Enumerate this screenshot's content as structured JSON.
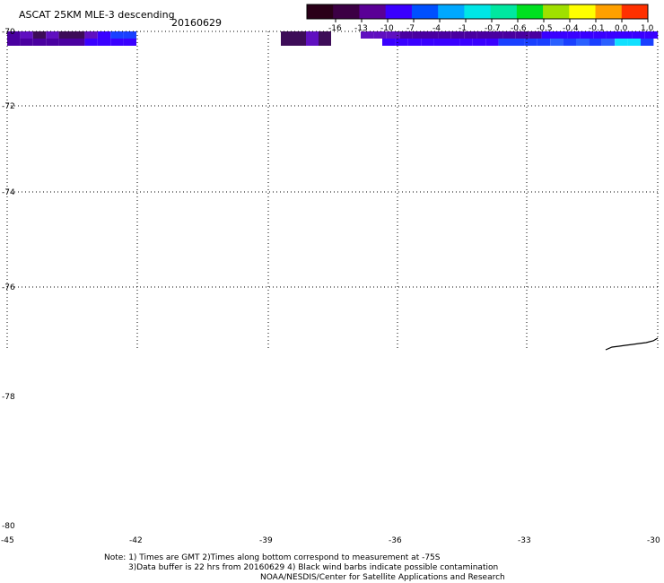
{
  "header": {
    "title": "ASCAT 25KM MLE-3 descending",
    "date": "20160629"
  },
  "colorbar": {
    "labels": [
      "-16",
      "-13",
      "-10",
      "-7",
      "-4",
      "-1",
      "-0.7",
      "-0.6",
      "-0.5",
      "-0.4",
      "-0.1",
      "0.0",
      "1.0"
    ],
    "colors": [
      "#2a0018",
      "#3c0044",
      "#5a0096",
      "#3a00ff",
      "#0050ff",
      "#00a8ff",
      "#00e6e6",
      "#00e8a0",
      "#00e020",
      "#a0e000",
      "#ffff00",
      "#ffa000",
      "#ff3000"
    ]
  },
  "map": {
    "lat_labels": [
      "-70",
      "-72",
      "-74",
      "-76",
      "-78",
      "-80"
    ],
    "lon_labels": [
      "-45",
      "-42",
      "-39",
      "-36",
      "-33",
      "-30"
    ]
  },
  "swath_colors": {
    "deep_purple": "#3d0c58",
    "purple": "#4a00a0",
    "indigo": "#3a00ff",
    "violet": "#6010c0",
    "blue": "#1a40ff",
    "cyan": "#10e0ff"
  },
  "notes": {
    "line1": "Note: 1) Times are GMT 2)Times along bottom correspond to measurement at -75S",
    "line2": "3)Data buffer is 22 hrs from 20160629 4) Black wind barbs indicate possible contamination",
    "line3": "NOAA/NESDIS/Center for Satellite Applications and Research"
  }
}
